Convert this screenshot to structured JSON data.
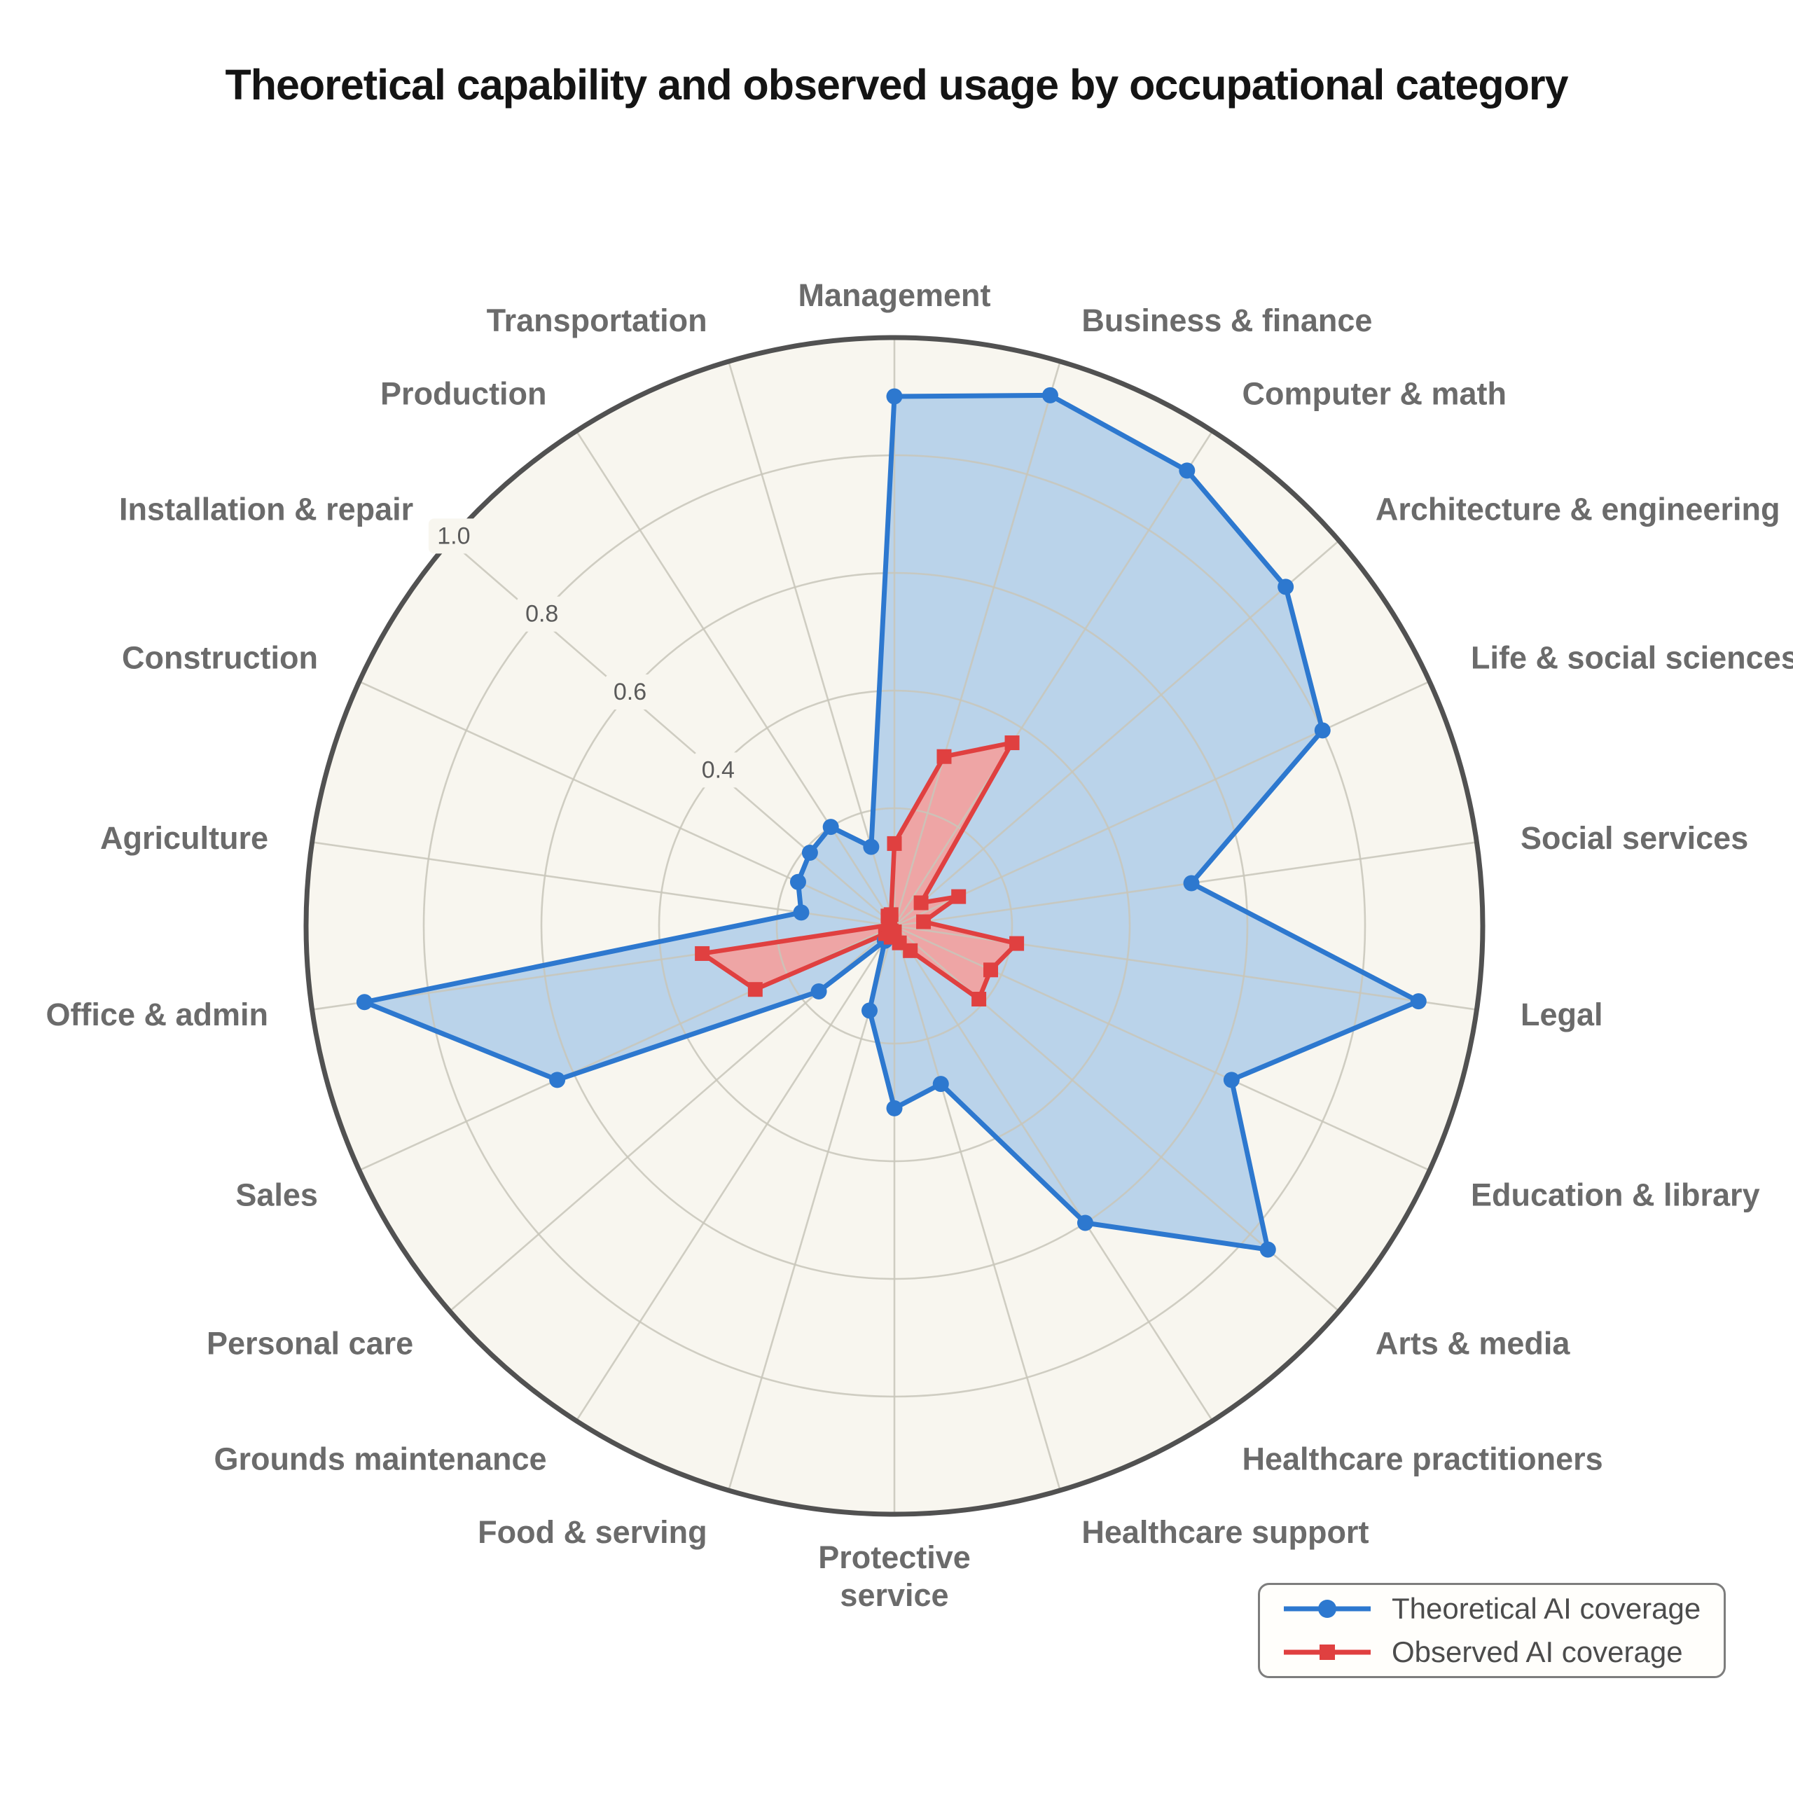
{
  "title": "Theoretical capability and observed usage by occupational category",
  "legend": {
    "items": [
      {
        "label": "Theoretical AI coverage",
        "marker": "circle",
        "color": "#2d78cf"
      },
      {
        "label": "Observed AI coverage",
        "marker": "square",
        "color": "#e04040"
      }
    ]
  },
  "chart_data": {
    "type": "radar",
    "title": "Theoretical capability and observed usage by occupational category",
    "categories": [
      "Management",
      "Business & finance",
      "Computer & math",
      "Architecture & engineering",
      "Life & social sciences",
      "Social services",
      "Legal",
      "Education & library",
      "Arts & media",
      "Healthcare practitioners",
      "Healthcare support",
      "Protective service",
      "Food & serving",
      "Grounds maintenance",
      "Personal care",
      "Sales",
      "Office & admin",
      "Agriculture",
      "Construction",
      "Installation & repair",
      "Production",
      "Transportation"
    ],
    "series": [
      {
        "name": "Theoretical AI coverage",
        "marker": "circle",
        "line_color": "#2d78cf",
        "fill_color": "#b7d1e9",
        "values": [
          0.9,
          0.94,
          0.92,
          0.88,
          0.8,
          0.51,
          0.9,
          0.63,
          0.84,
          0.6,
          0.28,
          0.31,
          0.15,
          0.03,
          0.17,
          0.63,
          0.91,
          0.16,
          0.18,
          0.19,
          0.2,
          0.14
        ]
      },
      {
        "name": "Observed AI coverage",
        "marker": "square",
        "line_color": "#e04040",
        "fill_color": "#f0a2a1",
        "values": [
          0.14,
          0.3,
          0.37,
          0.06,
          0.12,
          0.05,
          0.21,
          0.18,
          0.19,
          0.05,
          0.03,
          0.01,
          0.02,
          0.01,
          0.02,
          0.26,
          0.33,
          0.01,
          0.01,
          0.01,
          0.02,
          0.02
        ]
      }
    ],
    "rings": [
      0.2,
      0.4,
      0.6,
      0.8,
      1.0
    ],
    "radial_tick_labels": [
      "0.4",
      "0.6",
      "0.8",
      "1.0"
    ],
    "radial_tick_values": [
      0.4,
      0.6,
      0.8,
      1.0
    ],
    "rlim": [
      0,
      1.0
    ],
    "grid": true,
    "start_angle_deg": 90,
    "direction": "clockwise",
    "legend_position": "bottom-right",
    "colors": {
      "plot_background": "#f8f6ef",
      "grid_line": "#c8c5ba",
      "outer_circle": "#515151",
      "category_label": "#6b6b6b",
      "tick_label": "#5a5a5a",
      "title": "#141414"
    }
  }
}
